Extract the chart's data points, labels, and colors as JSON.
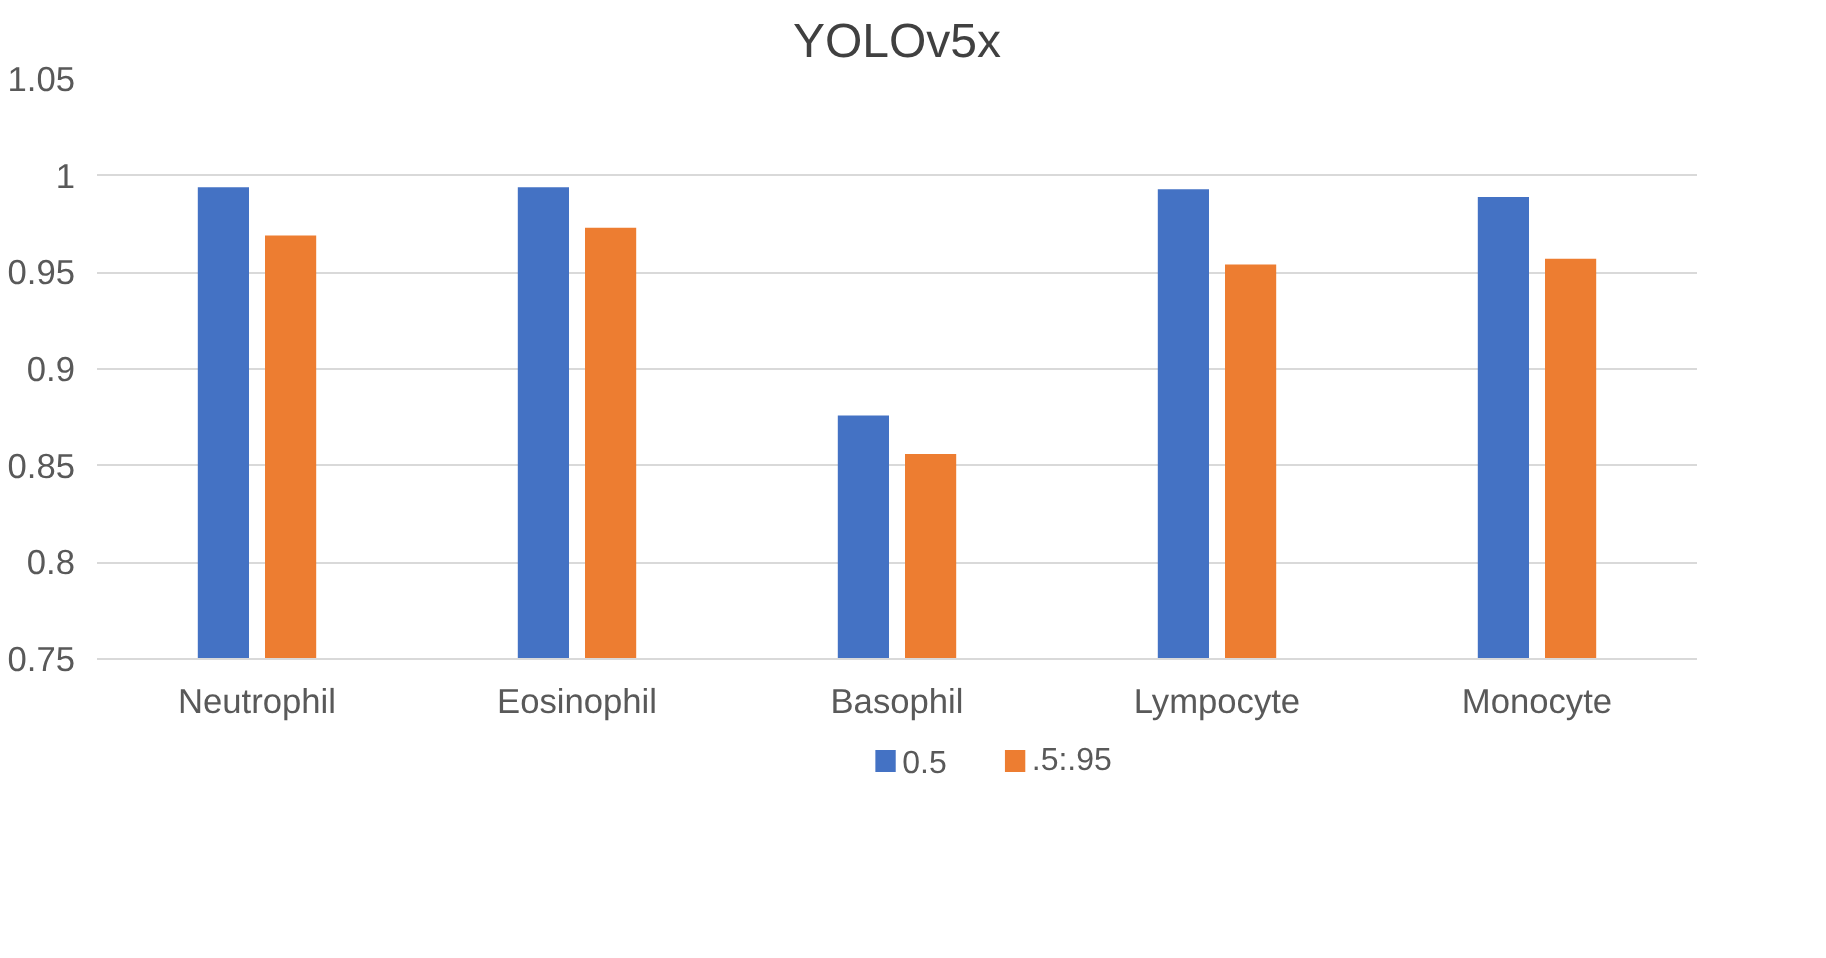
{
  "chart_data": {
    "type": "bar",
    "title": "YOLOv5x",
    "categories": [
      "Neutrophil",
      "Eosinophil",
      "Basophil",
      "Lympocyte",
      "Monocyte"
    ],
    "series": [
      {
        "name": "0.5",
        "color": "#4472c4",
        "values": [
          0.994,
          0.994,
          0.876,
          0.993,
          0.989
        ]
      },
      {
        "name": ".5:.95",
        "color": "#ed7d31",
        "values": [
          0.969,
          0.973,
          0.856,
          0.954,
          0.957
        ]
      }
    ],
    "ylim": [
      0.75,
      1.05
    ],
    "yticks": [
      {
        "value": 0.75,
        "label": "0.75"
      },
      {
        "value": 0.8,
        "label": "0.8"
      },
      {
        "value": 0.85,
        "label": "0.85"
      },
      {
        "value": 0.9,
        "label": "0.9"
      },
      {
        "value": 0.95,
        "label": "0.95"
      },
      {
        "value": 1,
        "label": "1"
      },
      {
        "value": 1.05,
        "label": "1.05"
      }
    ],
    "grid": "y",
    "legend": "bottom"
  }
}
